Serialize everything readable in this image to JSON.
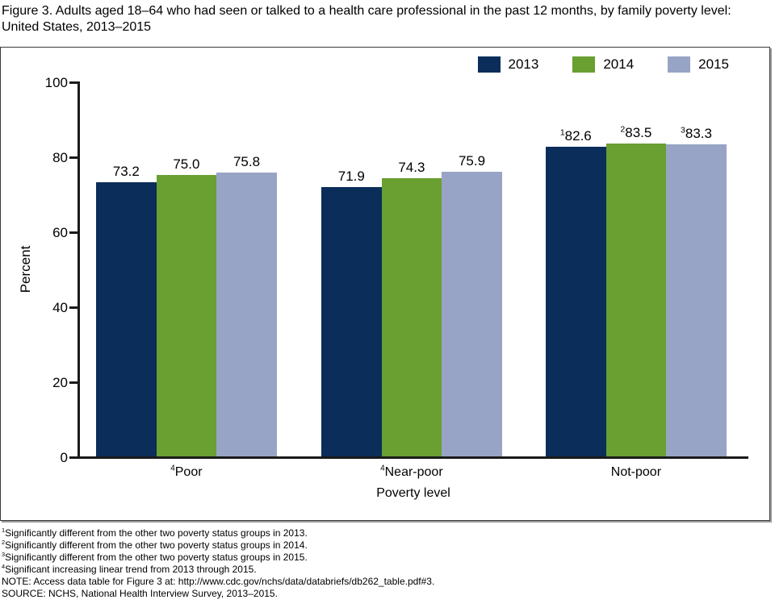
{
  "title": "Figure 3. Adults aged 18–64 who had seen or talked to a health care professional in the past 12 months, by family poverty level: United States, 2013–2015",
  "chart_data": {
    "type": "bar",
    "title": "Adults aged 18–64 who had seen or talked to a health care professional in the past 12 months, by family poverty level: United States, 2013–2015",
    "categories": [
      {
        "sup": "4",
        "label": "Poor"
      },
      {
        "sup": "4",
        "label": "Near-poor"
      },
      {
        "sup": "",
        "label": "Not-poor"
      }
    ],
    "series": [
      {
        "name": "2013",
        "color": "#0b2d5a",
        "values": [
          73.2,
          71.9,
          82.6
        ],
        "labels": [
          {
            "sup": "",
            "text": "73.2"
          },
          {
            "sup": "",
            "text": "71.9"
          },
          {
            "sup": "1",
            "text": "82.6"
          }
        ]
      },
      {
        "name": "2014",
        "color": "#6a9f31",
        "values": [
          75.0,
          74.3,
          83.5
        ],
        "labels": [
          {
            "sup": "",
            "text": "75.0"
          },
          {
            "sup": "",
            "text": "74.3"
          },
          {
            "sup": "2",
            "text": "83.5"
          }
        ]
      },
      {
        "name": "2015",
        "color": "#98a4c5",
        "values": [
          75.8,
          75.9,
          83.3
        ],
        "labels": [
          {
            "sup": "",
            "text": "75.8"
          },
          {
            "sup": "",
            "text": "75.9"
          },
          {
            "sup": "3",
            "text": "83.3"
          }
        ]
      }
    ],
    "xlabel": "Poverty level",
    "ylabel": "Percent",
    "ylim": [
      0,
      100
    ],
    "yticks": [
      0,
      20,
      40,
      60,
      80,
      100
    ],
    "legend_position": "top-right",
    "grid": false
  },
  "footnotes": [
    {
      "sup": "1",
      "text": "Significantly different from the other two poverty status groups in 2013."
    },
    {
      "sup": "2",
      "text": "Significantly different from the other two poverty status groups in 2014."
    },
    {
      "sup": "3",
      "text": "Significantly different from the other two poverty status groups in 2015."
    },
    {
      "sup": "4",
      "text": "Significant increasing linear trend from 2013 through 2015."
    },
    {
      "sup": "",
      "text": "NOTE: Access data table for Figure 3 at: http://www.cdc.gov/nchs/data/databriefs/db262_table.pdf#3."
    },
    {
      "sup": "",
      "text": "SOURCE: NCHS, National Health Interview Survey, 2013–2015."
    }
  ]
}
